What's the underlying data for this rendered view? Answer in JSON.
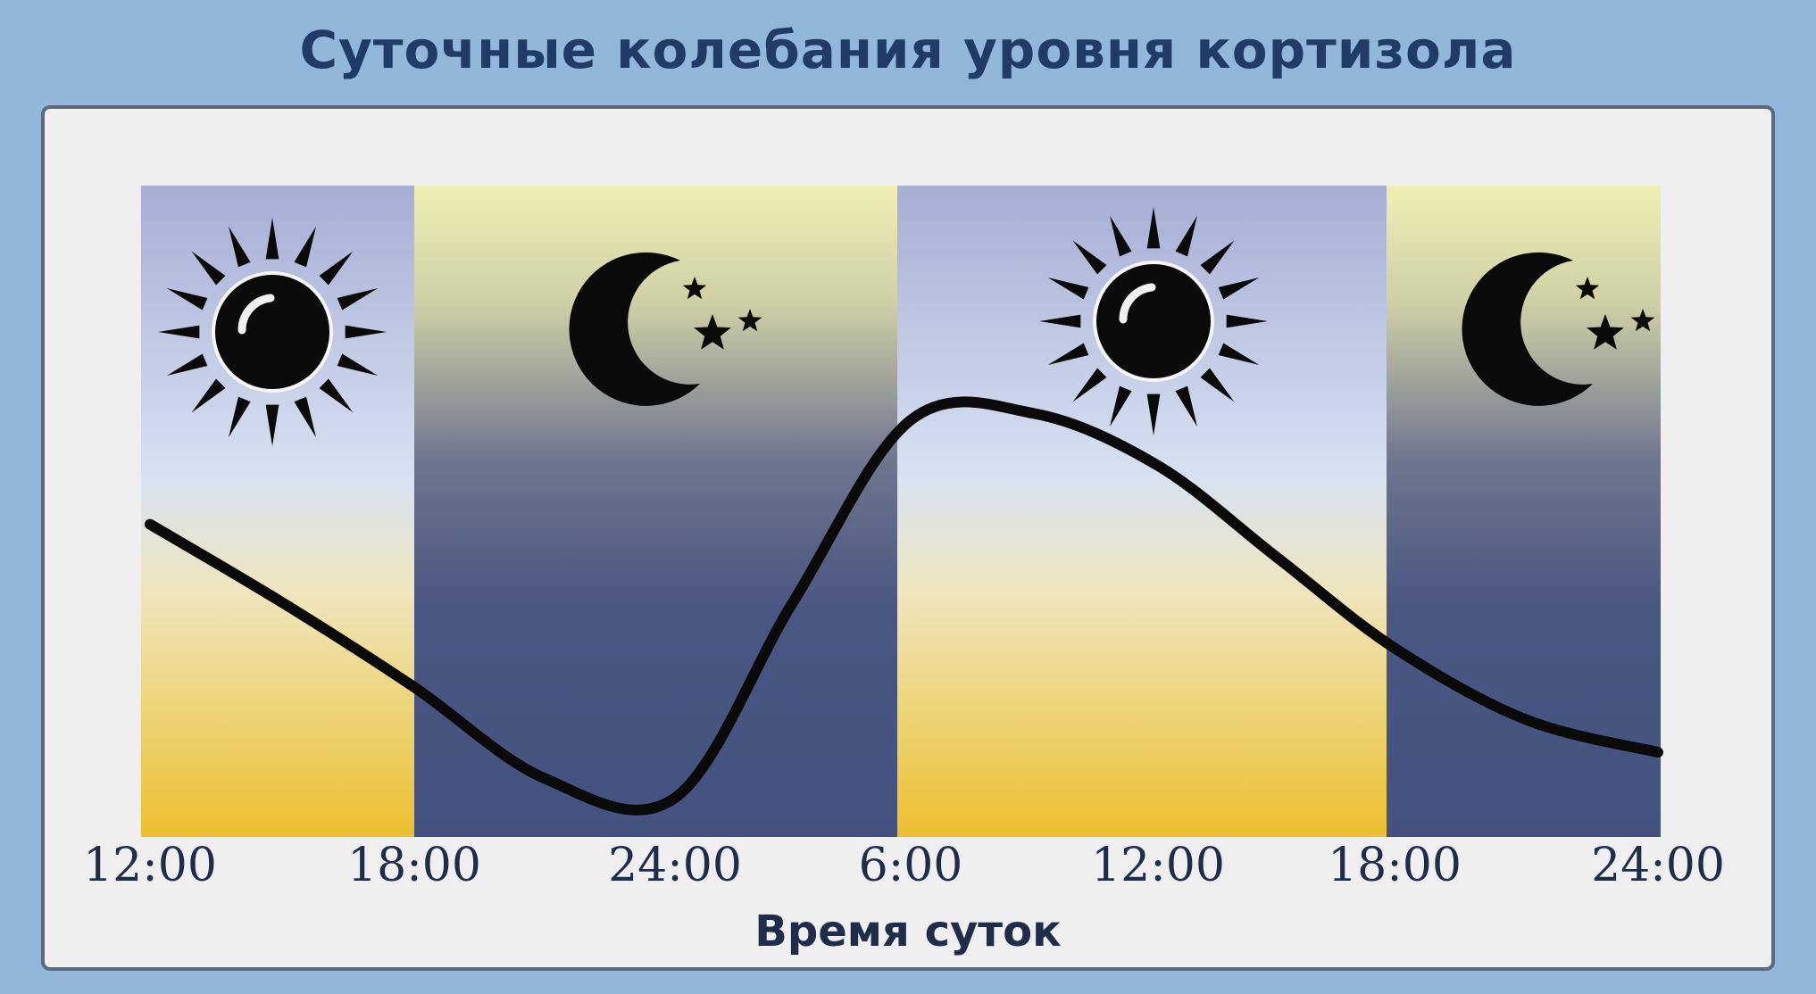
{
  "header": {
    "title": "Суточные колебания уровня кортизола"
  },
  "chart_data": {
    "type": "line",
    "title": "Суточные колебания уровня кортизола",
    "xlabel": "Время суток",
    "ylabel": "",
    "x_tick_labels": [
      "12:00",
      "18:00",
      "24:00",
      "6:00",
      "12:00",
      "18:00",
      "24:00"
    ],
    "x_hours": [
      0,
      3,
      6,
      9,
      12,
      15,
      18,
      21,
      24,
      27,
      30,
      33,
      36
    ],
    "series": [
      {
        "values": [
          0.48,
          0.36,
          0.23,
          0.09,
          0.06,
          0.36,
          0.64,
          0.65,
          0.57,
          0.43,
          0.29,
          0.18,
          0.13
        ]
      }
    ],
    "ylim": [
      0,
      1
    ],
    "bands": [
      {
        "kind": "day",
        "icon": "sun-icon"
      },
      {
        "kind": "night",
        "icon": "moon-stars-icon"
      },
      {
        "kind": "day",
        "icon": "sun-icon"
      },
      {
        "kind": "night",
        "icon": "moon-stars-icon"
      }
    ],
    "grid": false,
    "colors": {
      "curve": "#0a0a0a",
      "night_bottom": "#45527f",
      "day_bottom": "#ecc02e",
      "sky_top": "#a7add6"
    }
  }
}
